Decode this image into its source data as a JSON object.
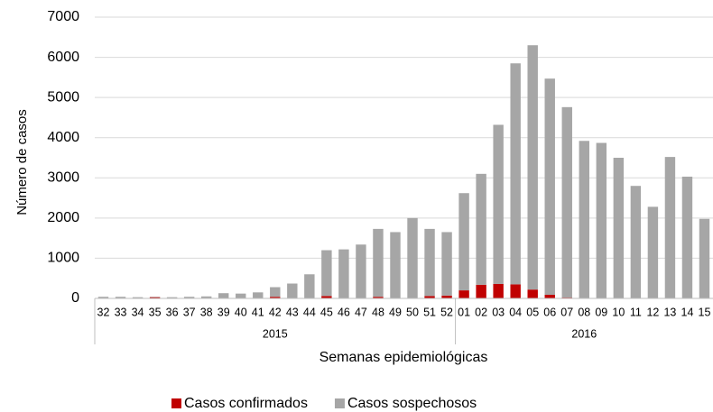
{
  "chart_data": {
    "type": "stacked-bar",
    "y_label": "Número de casos",
    "x_label": "Semanas epidemiológicas",
    "category_groups": [
      {
        "label": "2015",
        "categories": [
          "32",
          "33",
          "34",
          "35",
          "36",
          "37",
          "38",
          "39",
          "40",
          "41",
          "42",
          "43",
          "44",
          "45",
          "46",
          "47",
          "48",
          "49",
          "50",
          "51",
          "52"
        ]
      },
      {
        "label": "2016",
        "categories": [
          "01",
          "02",
          "03",
          "04",
          "05",
          "06",
          "07",
          "08",
          "09",
          "10",
          "11",
          "12",
          "13",
          "14",
          "15"
        ]
      }
    ],
    "series": [
      {
        "name": "Casos confirmados",
        "color": "#c00000",
        "values": [
          0,
          0,
          0,
          30,
          0,
          0,
          0,
          10,
          0,
          0,
          40,
          0,
          10,
          60,
          10,
          10,
          40,
          10,
          10,
          60,
          70,
          200,
          340,
          360,
          350,
          220,
          90,
          20,
          0,
          0,
          0,
          0,
          0,
          0,
          0,
          0
        ]
      },
      {
        "name": "Casos sospechosos",
        "color": "#a6a6a6",
        "values": [
          40,
          40,
          30,
          10,
          30,
          40,
          50,
          120,
          120,
          150,
          240,
          370,
          590,
          1140,
          1210,
          1330,
          1690,
          1640,
          1990,
          1670,
          1580,
          2420,
          2760,
          3960,
          5500,
          6080,
          5380,
          4740,
          3920,
          3870,
          3500,
          2800,
          2280,
          3520,
          3030,
          1980
        ]
      }
    ],
    "ylim": [
      0,
      7000
    ],
    "yticks": [
      0,
      1000,
      2000,
      3000,
      4000,
      5000,
      6000,
      7000
    ],
    "grid": true,
    "legend": "bottom"
  }
}
